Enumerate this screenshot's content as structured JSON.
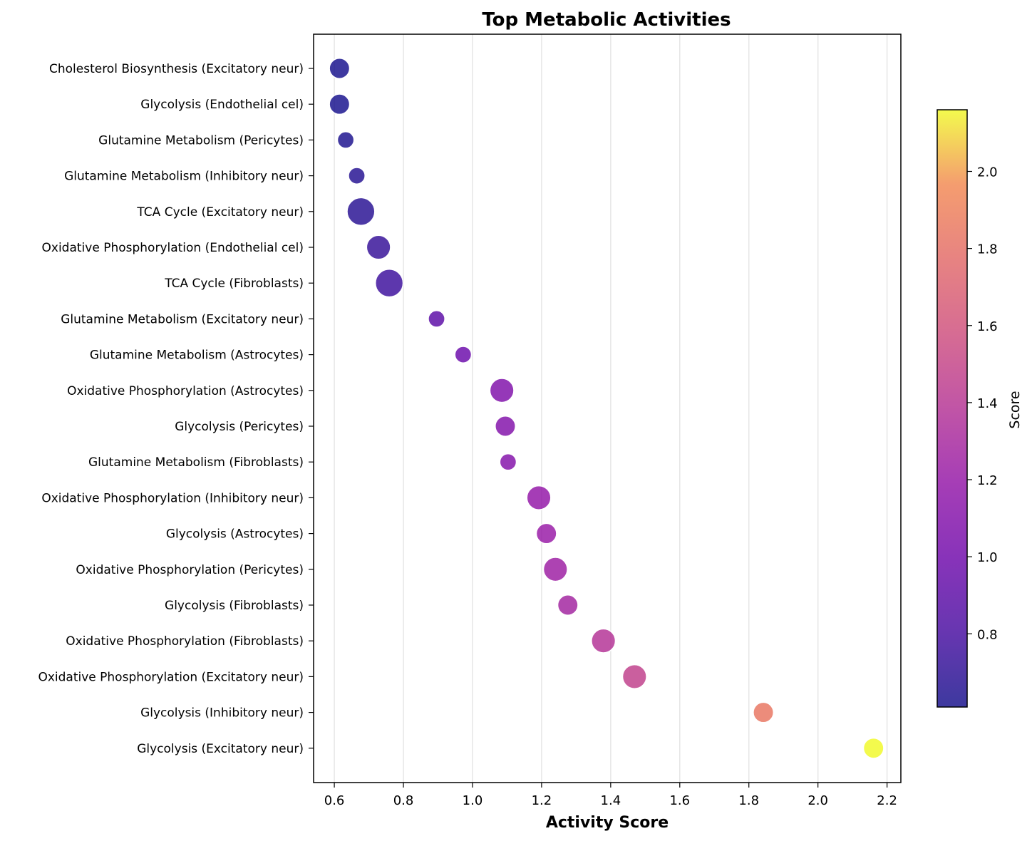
{
  "chart_data": {
    "type": "scatter",
    "title": "Top Metabolic Activities",
    "xlabel": "Activity Score",
    "ylabel": "",
    "xlim": [
      0.54,
      2.24
    ],
    "xticks": [
      0.6,
      0.8,
      1.0,
      1.2,
      1.4,
      1.6,
      1.8,
      2.0,
      2.2
    ],
    "xtick_labels": [
      "0.6",
      "0.8",
      "1.0",
      "1.2",
      "1.4",
      "1.6",
      "1.8",
      "2.0",
      "2.2"
    ],
    "grid": "vertical",
    "colormap": "plasma",
    "colorbar": {
      "label": "Score",
      "range": [
        0.61,
        2.16
      ],
      "ticks": [
        0.8,
        1.0,
        1.2,
        1.4,
        1.6,
        1.8,
        2.0
      ],
      "tick_labels": [
        "0.8",
        "1.0",
        "1.2",
        "1.4",
        "1.6",
        "1.8",
        "2.0"
      ]
    },
    "categories": [
      "Cholesterol Biosynthesis (Excitatory neur)",
      "Glycolysis (Endothelial cel)",
      "Glutamine Metabolism (Pericytes)",
      "Glutamine Metabolism (Inhibitory neur)",
      "TCA Cycle (Excitatory neur)",
      "Oxidative Phosphorylation (Endothelial cel)",
      "TCA Cycle (Fibroblasts)",
      "Glutamine Metabolism (Excitatory neur)",
      "Glutamine Metabolism (Astrocytes)",
      "Oxidative Phosphorylation (Astrocytes)",
      "Glycolysis (Pericytes)",
      "Glutamine Metabolism (Fibroblasts)",
      "Oxidative Phosphorylation (Inhibitory neur)",
      "Glycolysis (Astrocytes)",
      "Oxidative Phosphorylation (Pericytes)",
      "Glycolysis (Fibroblasts)",
      "Oxidative Phosphorylation (Fibroblasts)",
      "Oxidative Phosphorylation (Excitatory neur)",
      "Glycolysis (Inhibitory neur)",
      "Glycolysis (Excitatory neur)"
    ],
    "values": [
      0.615,
      0.615,
      0.633,
      0.665,
      0.677,
      0.728,
      0.759,
      0.896,
      0.973,
      1.085,
      1.095,
      1.103,
      1.192,
      1.214,
      1.24,
      1.276,
      1.379,
      1.469,
      1.842,
      2.161
    ],
    "marker_size": [
      2,
      2,
      1,
      1,
      4,
      3,
      4,
      1,
      1,
      3,
      2,
      1,
      3,
      2,
      3,
      2,
      3,
      3,
      2,
      2
    ]
  }
}
